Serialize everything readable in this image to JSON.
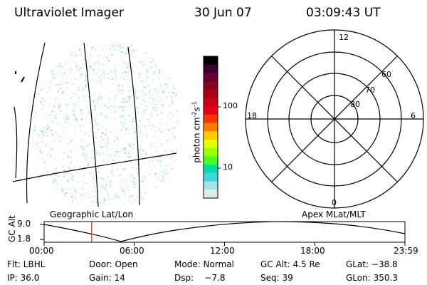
{
  "header": {
    "title": "Ultraviolet Imager",
    "date": "30 Jun 07",
    "time": "03:09:43 UT"
  },
  "colorbar": {
    "unit": "photon cm",
    "unit_exp1": "-2",
    "unit_mid": "s",
    "unit_exp2": "-1",
    "ticks": [
      "100",
      "10"
    ],
    "colors": [
      "#000000",
      "#3a0033",
      "#660033",
      "#8a0022",
      "#a8001a",
      "#cc0014",
      "#e8001a",
      "#ff3300",
      "#ff7a00",
      "#ffcc00",
      "#e8ff00",
      "#a0ff00",
      "#48ff20",
      "#00e0a0",
      "#40d8e0",
      "#a0e4e8",
      "#dcecee"
    ]
  },
  "polar": {
    "labels": {
      "top": "12",
      "bottom": "0",
      "left": "18",
      "right": "6",
      "r60": "60",
      "r70": "70",
      "r80": "80"
    }
  },
  "timeline": {
    "left_label": "Geographic Lat/Lon",
    "right_label": "Apex MLat/MLT",
    "y_axis_label": "GC Alt",
    "y_ticks": [
      "9.0",
      "1.8"
    ],
    "x_ticks": [
      "00:00",
      "06:00",
      "12:00",
      "18:00",
      "23:59"
    ],
    "marker_time": "03:09:43"
  },
  "status": {
    "flt": "Flt: LBHL",
    "door": "Door: Open",
    "mode": "Mode: Normal",
    "gc_alt": "GC Alt: 4.5 Re",
    "glat": "GLat: −38.8",
    "ip": "IP: 36.0",
    "gain": "Gain: 14",
    "dsp": "Dsp:    −7.8",
    "seq": "Seq: 39",
    "glon": "GLon: 350.3"
  }
}
